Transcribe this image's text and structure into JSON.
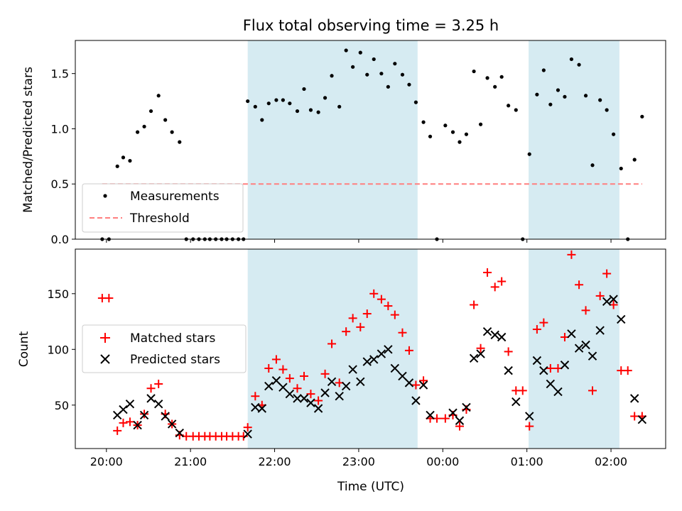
{
  "chart_data": [
    {
      "type": "scatter",
      "title": "Flux total observing time = 3.25 h",
      "xlabel": "",
      "ylabel": "Matched/Predicted stars",
      "ylim": [
        0,
        1.8
      ],
      "yticks": [
        "0.0",
        "0.5",
        "1.0",
        "1.5"
      ],
      "xticks": [
        "20:00",
        "21:00",
        "22:00",
        "23:00",
        "00:00",
        "01:00",
        "02:00"
      ],
      "x_unit": "hours since 20:00 UTC",
      "xlim": [
        -0.37,
        6.65
      ],
      "shaded_intervals": [
        [
          1.68,
          3.7
        ],
        [
          5.02,
          6.1
        ]
      ],
      "legend_position": "lower-left",
      "series": [
        {
          "name": "Measurements",
          "marker": "dot",
          "color": "#000000",
          "points": [
            [
              -0.05,
              0.0
            ],
            [
              0.03,
              0.0
            ],
            [
              0.13,
              0.66
            ],
            [
              0.2,
              0.74
            ],
            [
              0.28,
              0.71
            ],
            [
              0.37,
              0.97
            ],
            [
              0.45,
              1.02
            ],
            [
              0.53,
              1.16
            ],
            [
              0.62,
              1.3
            ],
            [
              0.7,
              1.08
            ],
            [
              0.78,
              0.97
            ],
            [
              0.87,
              0.88
            ],
            [
              0.95,
              0.0
            ],
            [
              1.03,
              0.0
            ],
            [
              1.1,
              0.0
            ],
            [
              1.17,
              0.0
            ],
            [
              1.23,
              0.0
            ],
            [
              1.3,
              0.0
            ],
            [
              1.37,
              0.0
            ],
            [
              1.43,
              0.0
            ],
            [
              1.5,
              0.0
            ],
            [
              1.57,
              0.0
            ],
            [
              1.63,
              0.0
            ],
            [
              1.68,
              1.25
            ],
            [
              1.77,
              1.2
            ],
            [
              1.85,
              1.08
            ],
            [
              1.93,
              1.23
            ],
            [
              2.02,
              1.26
            ],
            [
              2.1,
              1.26
            ],
            [
              2.18,
              1.23
            ],
            [
              2.27,
              1.16
            ],
            [
              2.35,
              1.36
            ],
            [
              2.43,
              1.17
            ],
            [
              2.52,
              1.15
            ],
            [
              2.6,
              1.28
            ],
            [
              2.68,
              1.48
            ],
            [
              2.77,
              1.2
            ],
            [
              2.85,
              1.71
            ],
            [
              2.93,
              1.56
            ],
            [
              3.02,
              1.69
            ],
            [
              3.1,
              1.49
            ],
            [
              3.18,
              1.63
            ],
            [
              3.27,
              1.5
            ],
            [
              3.35,
              1.38
            ],
            [
              3.43,
              1.59
            ],
            [
              3.52,
              1.49
            ],
            [
              3.6,
              1.4
            ],
            [
              3.68,
              1.24
            ],
            [
              3.77,
              1.06
            ],
            [
              3.85,
              0.93
            ],
            [
              3.93,
              0.0
            ],
            [
              4.03,
              1.03
            ],
            [
              4.12,
              0.97
            ],
            [
              4.2,
              0.88
            ],
            [
              4.28,
              0.95
            ],
            [
              4.37,
              1.52
            ],
            [
              4.45,
              1.04
            ],
            [
              4.53,
              1.46
            ],
            [
              4.62,
              1.38
            ],
            [
              4.7,
              1.47
            ],
            [
              4.78,
              1.21
            ],
            [
              4.87,
              1.17
            ],
            [
              4.95,
              0.0
            ],
            [
              5.03,
              0.77
            ],
            [
              5.12,
              1.31
            ],
            [
              5.2,
              1.53
            ],
            [
              5.28,
              1.22
            ],
            [
              5.37,
              1.35
            ],
            [
              5.45,
              1.29
            ],
            [
              5.53,
              1.63
            ],
            [
              5.62,
              1.58
            ],
            [
              5.7,
              1.3
            ],
            [
              5.78,
              0.67
            ],
            [
              5.87,
              1.26
            ],
            [
              5.95,
              1.17
            ],
            [
              6.03,
              0.95
            ],
            [
              6.12,
              0.64
            ],
            [
              6.2,
              0.0
            ],
            [
              6.28,
              0.72
            ],
            [
              6.37,
              1.11
            ]
          ]
        },
        {
          "name": "Threshold",
          "marker": "dashed-line",
          "color": "#ff7f7f",
          "x": [
            -0.05,
            6.37
          ],
          "y": [
            0.5,
            0.5
          ]
        }
      ]
    },
    {
      "type": "scatter",
      "title": "",
      "xlabel": "Time (UTC)",
      "ylabel": "Count",
      "ylim": [
        11,
        190
      ],
      "yticks": [
        "50",
        "100",
        "150"
      ],
      "xticks": [
        "20:00",
        "21:00",
        "22:00",
        "23:00",
        "00:00",
        "01:00",
        "02:00"
      ],
      "x_unit": "hours since 20:00 UTC",
      "xlim": [
        -0.37,
        6.65
      ],
      "shaded_intervals": [
        [
          1.68,
          3.7
        ],
        [
          5.02,
          6.1
        ]
      ],
      "legend_position": "center-left",
      "series": [
        {
          "name": "Matched stars",
          "marker": "plus",
          "color": "#ff0000",
          "points": [
            [
              -0.05,
              146
            ],
            [
              0.03,
              146
            ],
            [
              0.13,
              27
            ],
            [
              0.2,
              34
            ],
            [
              0.28,
              35
            ],
            [
              0.37,
              32
            ],
            [
              0.45,
              42
            ],
            [
              0.53,
              65
            ],
            [
              0.62,
              69
            ],
            [
              0.7,
              42
            ],
            [
              0.78,
              33
            ],
            [
              0.87,
              23
            ],
            [
              0.95,
              22
            ],
            [
              1.03,
              22
            ],
            [
              1.1,
              22
            ],
            [
              1.17,
              22
            ],
            [
              1.23,
              22
            ],
            [
              1.3,
              22
            ],
            [
              1.37,
              22
            ],
            [
              1.43,
              22
            ],
            [
              1.5,
              22
            ],
            [
              1.57,
              22
            ],
            [
              1.63,
              22
            ],
            [
              1.68,
              30
            ],
            [
              1.77,
              58
            ],
            [
              1.85,
              50
            ],
            [
              1.93,
              83
            ],
            [
              2.02,
              91
            ],
            [
              2.1,
              82
            ],
            [
              2.18,
              74
            ],
            [
              2.27,
              65
            ],
            [
              2.35,
              76
            ],
            [
              2.43,
              60
            ],
            [
              2.52,
              54
            ],
            [
              2.6,
              78
            ],
            [
              2.68,
              105
            ],
            [
              2.77,
              70
            ],
            [
              2.85,
              116
            ],
            [
              2.93,
              128
            ],
            [
              3.02,
              120
            ],
            [
              3.1,
              132
            ],
            [
              3.18,
              150
            ],
            [
              3.27,
              145
            ],
            [
              3.35,
              139
            ],
            [
              3.43,
              131
            ],
            [
              3.52,
              115
            ],
            [
              3.6,
              99
            ],
            [
              3.68,
              68
            ],
            [
              3.77,
              72
            ],
            [
              3.85,
              38
            ],
            [
              3.93,
              38
            ],
            [
              4.03,
              38
            ],
            [
              4.12,
              41
            ],
            [
              4.2,
              31
            ],
            [
              4.28,
              46
            ],
            [
              4.37,
              140
            ],
            [
              4.45,
              101
            ],
            [
              4.53,
              169
            ],
            [
              4.62,
              156
            ],
            [
              4.7,
              161
            ],
            [
              4.78,
              98
            ],
            [
              4.87,
              63
            ],
            [
              4.95,
              63
            ],
            [
              5.03,
              31
            ],
            [
              5.12,
              118
            ],
            [
              5.2,
              124
            ],
            [
              5.28,
              83
            ],
            [
              5.37,
              83
            ],
            [
              5.45,
              111
            ],
            [
              5.53,
              185
            ],
            [
              5.62,
              158
            ],
            [
              5.7,
              135
            ],
            [
              5.78,
              63
            ],
            [
              5.87,
              148
            ],
            [
              5.95,
              168
            ],
            [
              6.03,
              140
            ],
            [
              6.12,
              81
            ],
            [
              6.2,
              81
            ],
            [
              6.28,
              40
            ],
            [
              6.37,
              40
            ]
          ]
        },
        {
          "name": "Predicted stars",
          "marker": "x",
          "color": "#000000",
          "points": [
            [
              0.13,
              41
            ],
            [
              0.2,
              46
            ],
            [
              0.28,
              51
            ],
            [
              0.37,
              32
            ],
            [
              0.45,
              41
            ],
            [
              0.53,
              56
            ],
            [
              0.62,
              51
            ],
            [
              0.7,
              40
            ],
            [
              0.78,
              33
            ],
            [
              0.87,
              25
            ],
            [
              1.68,
              24
            ],
            [
              1.77,
              48
            ],
            [
              1.85,
              47
            ],
            [
              1.93,
              67
            ],
            [
              2.02,
              72
            ],
            [
              2.1,
              66
            ],
            [
              2.18,
              60
            ],
            [
              2.27,
              56
            ],
            [
              2.35,
              56
            ],
            [
              2.43,
              52
            ],
            [
              2.52,
              47
            ],
            [
              2.6,
              61
            ],
            [
              2.68,
              71
            ],
            [
              2.77,
              58
            ],
            [
              2.85,
              67
            ],
            [
              2.93,
              82
            ],
            [
              3.02,
              71
            ],
            [
              3.1,
              89
            ],
            [
              3.18,
              91
            ],
            [
              3.27,
              96
            ],
            [
              3.35,
              100
            ],
            [
              3.43,
              83
            ],
            [
              3.52,
              76
            ],
            [
              3.6,
              70
            ],
            [
              3.68,
              54
            ],
            [
              3.77,
              68
            ],
            [
              3.85,
              41
            ],
            [
              4.12,
              43
            ],
            [
              4.2,
              36
            ],
            [
              4.28,
              48
            ],
            [
              4.37,
              92
            ],
            [
              4.45,
              96
            ],
            [
              4.53,
              116
            ],
            [
              4.62,
              113
            ],
            [
              4.7,
              111
            ],
            [
              4.78,
              81
            ],
            [
              4.87,
              53
            ],
            [
              5.03,
              40
            ],
            [
              5.12,
              90
            ],
            [
              5.2,
              81
            ],
            [
              5.28,
              69
            ],
            [
              5.37,
              62
            ],
            [
              5.45,
              86
            ],
            [
              5.53,
              114
            ],
            [
              5.62,
              101
            ],
            [
              5.7,
              104
            ],
            [
              5.78,
              94
            ],
            [
              5.87,
              117
            ],
            [
              5.95,
              143
            ],
            [
              6.03,
              145
            ],
            [
              6.12,
              127
            ],
            [
              6.28,
              56
            ],
            [
              6.37,
              37
            ]
          ]
        }
      ]
    }
  ]
}
